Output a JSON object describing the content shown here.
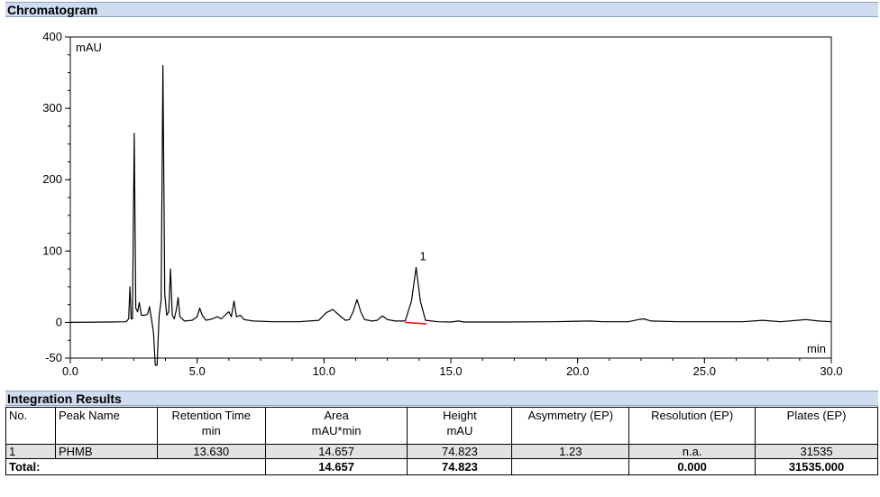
{
  "chromatogram_header": "Chromatogram",
  "integration_header": "Integration Results",
  "chart_data": {
    "type": "line",
    "ylabel": "mAU",
    "xlabel": "min",
    "xlim": [
      0,
      30
    ],
    "ylim": [
      -50,
      400
    ],
    "yticks": [
      -50,
      0,
      100,
      200,
      300,
      400
    ],
    "xticks": [
      0.0,
      5.0,
      10.0,
      15.0,
      20.0,
      25.0,
      30.0
    ],
    "ytick_labels": [
      "-50",
      "0",
      "100",
      "200",
      "300",
      "400"
    ],
    "xtick_labels": [
      "0.0",
      "5.0",
      "10.0",
      "15.0",
      "20.0",
      "25.0",
      "30.0"
    ],
    "grid": false,
    "series": [
      {
        "color": "#000000",
        "points": [
          [
            0.0,
            0
          ],
          [
            1.5,
            0.5
          ],
          [
            2.2,
            1
          ],
          [
            2.3,
            5
          ],
          [
            2.35,
            50
          ],
          [
            2.4,
            5
          ],
          [
            2.45,
            5
          ],
          [
            2.52,
            265
          ],
          [
            2.58,
            20
          ],
          [
            2.65,
            15
          ],
          [
            2.72,
            28
          ],
          [
            2.8,
            10
          ],
          [
            2.95,
            10
          ],
          [
            3.05,
            12
          ],
          [
            3.12,
            22
          ],
          [
            3.2,
            5
          ],
          [
            3.28,
            -15
          ],
          [
            3.35,
            -60
          ],
          [
            3.42,
            -60
          ],
          [
            3.5,
            10
          ],
          [
            3.58,
            30
          ],
          [
            3.65,
            360
          ],
          [
            3.72,
            40
          ],
          [
            3.8,
            10
          ],
          [
            3.88,
            15
          ],
          [
            3.95,
            75
          ],
          [
            4.02,
            10
          ],
          [
            4.1,
            5
          ],
          [
            4.18,
            18
          ],
          [
            4.25,
            35
          ],
          [
            4.32,
            8
          ],
          [
            4.5,
            2
          ],
          [
            4.8,
            3
          ],
          [
            5.0,
            8
          ],
          [
            5.1,
            20
          ],
          [
            5.2,
            10
          ],
          [
            5.35,
            3
          ],
          [
            5.6,
            5
          ],
          [
            5.8,
            8
          ],
          [
            5.95,
            5
          ],
          [
            6.1,
            10
          ],
          [
            6.25,
            15
          ],
          [
            6.35,
            8
          ],
          [
            6.45,
            30
          ],
          [
            6.55,
            8
          ],
          [
            6.7,
            10
          ],
          [
            6.85,
            4
          ],
          [
            7.2,
            2
          ],
          [
            8.0,
            1
          ],
          [
            9.0,
            1
          ],
          [
            9.8,
            3
          ],
          [
            10.1,
            14
          ],
          [
            10.35,
            18
          ],
          [
            10.6,
            10
          ],
          [
            10.85,
            3
          ],
          [
            11.0,
            4
          ],
          [
            11.15,
            15
          ],
          [
            11.3,
            32
          ],
          [
            11.45,
            15
          ],
          [
            11.6,
            4
          ],
          [
            11.9,
            2
          ],
          [
            12.1,
            3
          ],
          [
            12.3,
            9
          ],
          [
            12.5,
            4
          ],
          [
            12.8,
            2
          ],
          [
            13.2,
            2
          ],
          [
            13.45,
            30
          ],
          [
            13.63,
            77
          ],
          [
            13.8,
            30
          ],
          [
            14.0,
            3
          ],
          [
            14.5,
            1
          ],
          [
            15.0,
            0.5
          ],
          [
            15.3,
            2
          ],
          [
            15.5,
            0.5
          ],
          [
            17.0,
            0.5
          ],
          [
            19.0,
            1
          ],
          [
            20.5,
            2
          ],
          [
            21.0,
            1
          ],
          [
            22.0,
            1
          ],
          [
            22.4,
            4
          ],
          [
            22.6,
            5
          ],
          [
            22.9,
            2
          ],
          [
            24.0,
            1
          ],
          [
            25.5,
            1
          ],
          [
            26.5,
            1
          ],
          [
            27.3,
            3
          ],
          [
            28.0,
            1
          ],
          [
            29.0,
            4
          ],
          [
            29.5,
            2
          ],
          [
            30.0,
            1
          ]
        ]
      }
    ],
    "annotations": [
      {
        "x": 13.63,
        "y": 77,
        "text": "1"
      }
    ],
    "baseline_segment": {
      "x": [
        13.2,
        14.05
      ],
      "y": [
        0,
        -2
      ],
      "color": "#ff0000"
    }
  },
  "table": {
    "headers": [
      {
        "line1": "No.",
        "line2": ""
      },
      {
        "line1": "Peak Name",
        "line2": ""
      },
      {
        "line1": "Retention Time",
        "line2": "min"
      },
      {
        "line1": "Area",
        "line2": "mAU*min"
      },
      {
        "line1": "Height",
        "line2": "mAU"
      },
      {
        "line1": "Asymmetry (EP)",
        "line2": ""
      },
      {
        "line1": "Resolution (EP)",
        "line2": ""
      },
      {
        "line1": "Plates (EP)",
        "line2": ""
      }
    ],
    "rows": [
      {
        "no": "1",
        "name": "PHMB",
        "rt": "13.630",
        "area": "14.657",
        "height": "74.823",
        "asym": "1.23",
        "res": "n.a.",
        "plates": "31535"
      }
    ],
    "total": {
      "label": "Total:",
      "area": "14.657",
      "height": "74.823",
      "res": "0.000",
      "plates": "31535.000"
    }
  }
}
